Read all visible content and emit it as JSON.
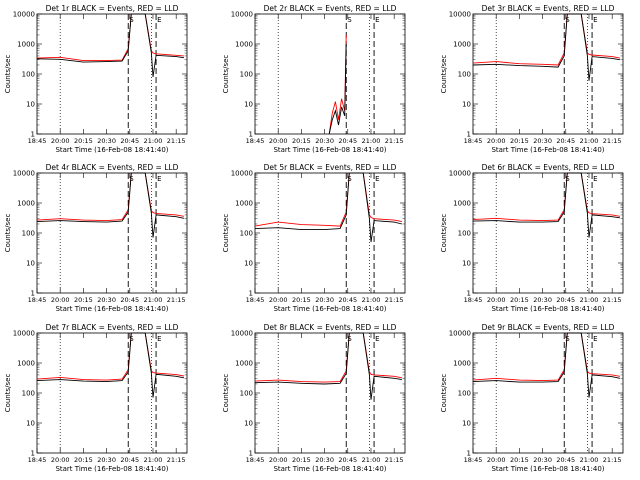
{
  "xlabel": "Start Time (16-Feb-08 18:41:40)",
  "ylabel": "Counts/sec",
  "x_tick_labels": [
    "18:45",
    "20:00",
    "20:15",
    "20:30",
    "20:45",
    "21:00",
    "21:15"
  ],
  "y_tick_labels": [
    "1",
    "10",
    "100",
    "1000",
    "10000"
  ],
  "marker_labels": [
    "S",
    "E"
  ],
  "colors": {
    "events": "#000000",
    "lld": "#ff0000"
  },
  "chart_data": [
    {
      "type": "line",
      "title": "Det 1r BLACK = Events, RED = LLD",
      "ylim": [
        1,
        10000
      ],
      "yscale": "log",
      "x": [
        "19:45",
        "20:00",
        "20:15",
        "20:30",
        "20:40",
        "20:44",
        "20:46",
        "20:55",
        "20:59",
        "21:00",
        "21:02",
        "21:15",
        "21:20"
      ],
      "series": [
        {
          "name": "Events",
          "values": [
            320,
            310,
            250,
            260,
            270,
            600,
            10000,
            10000,
            500,
            80,
            420,
            380,
            350
          ]
        },
        {
          "name": "LLD",
          "values": [
            340,
            360,
            280,
            280,
            290,
            700,
            10000,
            10000,
            600,
            500,
            470,
            420,
            400
          ]
        }
      ],
      "dashed_lines": [
        "20:44",
        "21:02"
      ],
      "dotted_lines": [
        "20:00",
        "20:59"
      ]
    },
    {
      "type": "line",
      "title": "Det 2r BLACK = Events, RED = LLD",
      "ylim": [
        1,
        10000
      ],
      "yscale": "log",
      "x": [
        "20:33",
        "20:35",
        "20:37",
        "20:39",
        "20:41",
        "20:43",
        "20:44"
      ],
      "series": [
        {
          "name": "Events",
          "values": [
            1,
            3,
            6,
            2,
            8,
            4,
            1000
          ]
        },
        {
          "name": "LLD",
          "values": [
            1,
            5,
            12,
            3,
            15,
            6,
            2000
          ]
        }
      ],
      "dashed_lines": [
        "20:44",
        "21:02"
      ],
      "dotted_lines": [
        "20:00",
        "20:59"
      ]
    },
    {
      "type": "line",
      "title": "Det 3r BLACK = Events, RED = LLD",
      "ylim": [
        1,
        10000
      ],
      "yscale": "log",
      "x": [
        "19:45",
        "20:00",
        "20:15",
        "20:30",
        "20:40",
        "20:44",
        "20:46",
        "20:55",
        "20:59",
        "21:00",
        "21:02",
        "21:15",
        "21:20"
      ],
      "series": [
        {
          "name": "Events",
          "values": [
            200,
            210,
            190,
            180,
            170,
            400,
            10000,
            10000,
            400,
            60,
            380,
            330,
            300
          ]
        },
        {
          "name": "LLD",
          "values": [
            230,
            260,
            220,
            210,
            200,
            500,
            10000,
            10000,
            500,
            450,
            430,
            380,
            340
          ]
        }
      ],
      "dashed_lines": [
        "20:44",
        "21:02"
      ],
      "dotted_lines": [
        "20:00",
        "20:59"
      ]
    },
    {
      "type": "line",
      "title": "Det 4r BLACK = Events, RED = LLD",
      "ylim": [
        1,
        10000
      ],
      "yscale": "log",
      "x": [
        "19:45",
        "20:00",
        "20:15",
        "20:30",
        "20:40",
        "20:44",
        "20:46",
        "20:55",
        "20:59",
        "21:00",
        "21:02",
        "21:15",
        "21:20"
      ],
      "series": [
        {
          "name": "Events",
          "values": [
            240,
            260,
            240,
            230,
            250,
            500,
            10000,
            10000,
            450,
            70,
            400,
            350,
            310
          ]
        },
        {
          "name": "LLD",
          "values": [
            270,
            300,
            270,
            260,
            280,
            600,
            10000,
            10000,
            550,
            480,
            450,
            400,
            360
          ]
        }
      ],
      "dashed_lines": [
        "20:44",
        "21:02"
      ],
      "dotted_lines": [
        "20:00",
        "20:59"
      ]
    },
    {
      "type": "line",
      "title": "Det 5r BLACK = Events, RED = LLD",
      "ylim": [
        1,
        10000
      ],
      "yscale": "log",
      "x": [
        "19:45",
        "20:00",
        "20:15",
        "20:30",
        "20:40",
        "20:44",
        "20:46",
        "20:55",
        "20:59",
        "21:00",
        "21:02",
        "21:15",
        "21:20"
      ],
      "series": [
        {
          "name": "Events",
          "values": [
            140,
            150,
            130,
            130,
            140,
            400,
            10000,
            10000,
            300,
            50,
            260,
            230,
            200
          ]
        },
        {
          "name": "LLD",
          "values": [
            170,
            230,
            190,
            180,
            170,
            500,
            10000,
            10000,
            400,
            330,
            300,
            270,
            240
          ]
        }
      ],
      "dashed_lines": [
        "20:44",
        "21:02"
      ],
      "dotted_lines": [
        "20:00",
        "20:59"
      ]
    },
    {
      "type": "line",
      "title": "Det 6r BLACK = Events, RED = LLD",
      "ylim": [
        1,
        10000
      ],
      "yscale": "log",
      "x": [
        "19:45",
        "20:00",
        "20:15",
        "20:30",
        "20:40",
        "20:44",
        "20:46",
        "20:55",
        "20:59",
        "21:00",
        "21:02",
        "21:15",
        "21:20"
      ],
      "series": [
        {
          "name": "Events",
          "values": [
            250,
            260,
            230,
            230,
            240,
            500,
            10000,
            10000,
            450,
            70,
            400,
            350,
            320
          ]
        },
        {
          "name": "LLD",
          "values": [
            280,
            310,
            270,
            260,
            270,
            600,
            10000,
            10000,
            550,
            470,
            440,
            400,
            360
          ]
        }
      ],
      "dashed_lines": [
        "20:44",
        "21:02"
      ],
      "dotted_lines": [
        "20:00",
        "20:59"
      ]
    },
    {
      "type": "line",
      "title": "Det 7r BLACK = Events, RED = LLD",
      "ylim": [
        1,
        10000
      ],
      "yscale": "log",
      "x": [
        "19:45",
        "20:00",
        "20:15",
        "20:30",
        "20:40",
        "20:44",
        "20:46",
        "20:55",
        "20:59",
        "21:00",
        "21:02",
        "21:15",
        "21:20"
      ],
      "series": [
        {
          "name": "Events",
          "values": [
            260,
            280,
            250,
            240,
            260,
            500,
            10000,
            10000,
            450,
            70,
            420,
            360,
            320
          ]
        },
        {
          "name": "LLD",
          "values": [
            290,
            330,
            280,
            270,
            290,
            600,
            10000,
            10000,
            550,
            480,
            460,
            410,
            370
          ]
        }
      ],
      "dashed_lines": [
        "20:44",
        "21:02"
      ],
      "dotted_lines": [
        "20:00",
        "20:59"
      ]
    },
    {
      "type": "line",
      "title": "Det 8r BLACK = Events, RED = LLD",
      "ylim": [
        1,
        10000
      ],
      "yscale": "log",
      "x": [
        "19:45",
        "20:00",
        "20:15",
        "20:30",
        "20:40",
        "20:44",
        "20:46",
        "20:55",
        "20:59",
        "21:00",
        "21:02",
        "21:15",
        "21:20"
      ],
      "series": [
        {
          "name": "Events",
          "values": [
            220,
            230,
            210,
            200,
            210,
            450,
            10000,
            10000,
            400,
            60,
            360,
            310,
            280
          ]
        },
        {
          "name": "LLD",
          "values": [
            250,
            270,
            240,
            230,
            240,
            550,
            10000,
            10000,
            500,
            420,
            400,
            360,
            320
          ]
        }
      ],
      "dashed_lines": [
        "20:44",
        "21:02"
      ],
      "dotted_lines": [
        "20:00",
        "20:59"
      ]
    },
    {
      "type": "line",
      "title": "Det 9r BLACK = Events, RED = LLD",
      "ylim": [
        1,
        10000
      ],
      "yscale": "log",
      "x": [
        "19:45",
        "20:00",
        "20:15",
        "20:30",
        "20:40",
        "20:44",
        "20:46",
        "20:55",
        "20:59",
        "21:00",
        "21:02",
        "21:15",
        "21:20"
      ],
      "series": [
        {
          "name": "Events",
          "values": [
            240,
            260,
            230,
            230,
            240,
            500,
            10000,
            10000,
            430,
            70,
            400,
            350,
            310
          ]
        },
        {
          "name": "LLD",
          "values": [
            270,
            310,
            270,
            260,
            270,
            600,
            10000,
            10000,
            530,
            460,
            440,
            400,
            360
          ]
        }
      ],
      "dashed_lines": [
        "20:44",
        "21:02"
      ],
      "dotted_lines": [
        "20:00",
        "20:59"
      ]
    }
  ]
}
